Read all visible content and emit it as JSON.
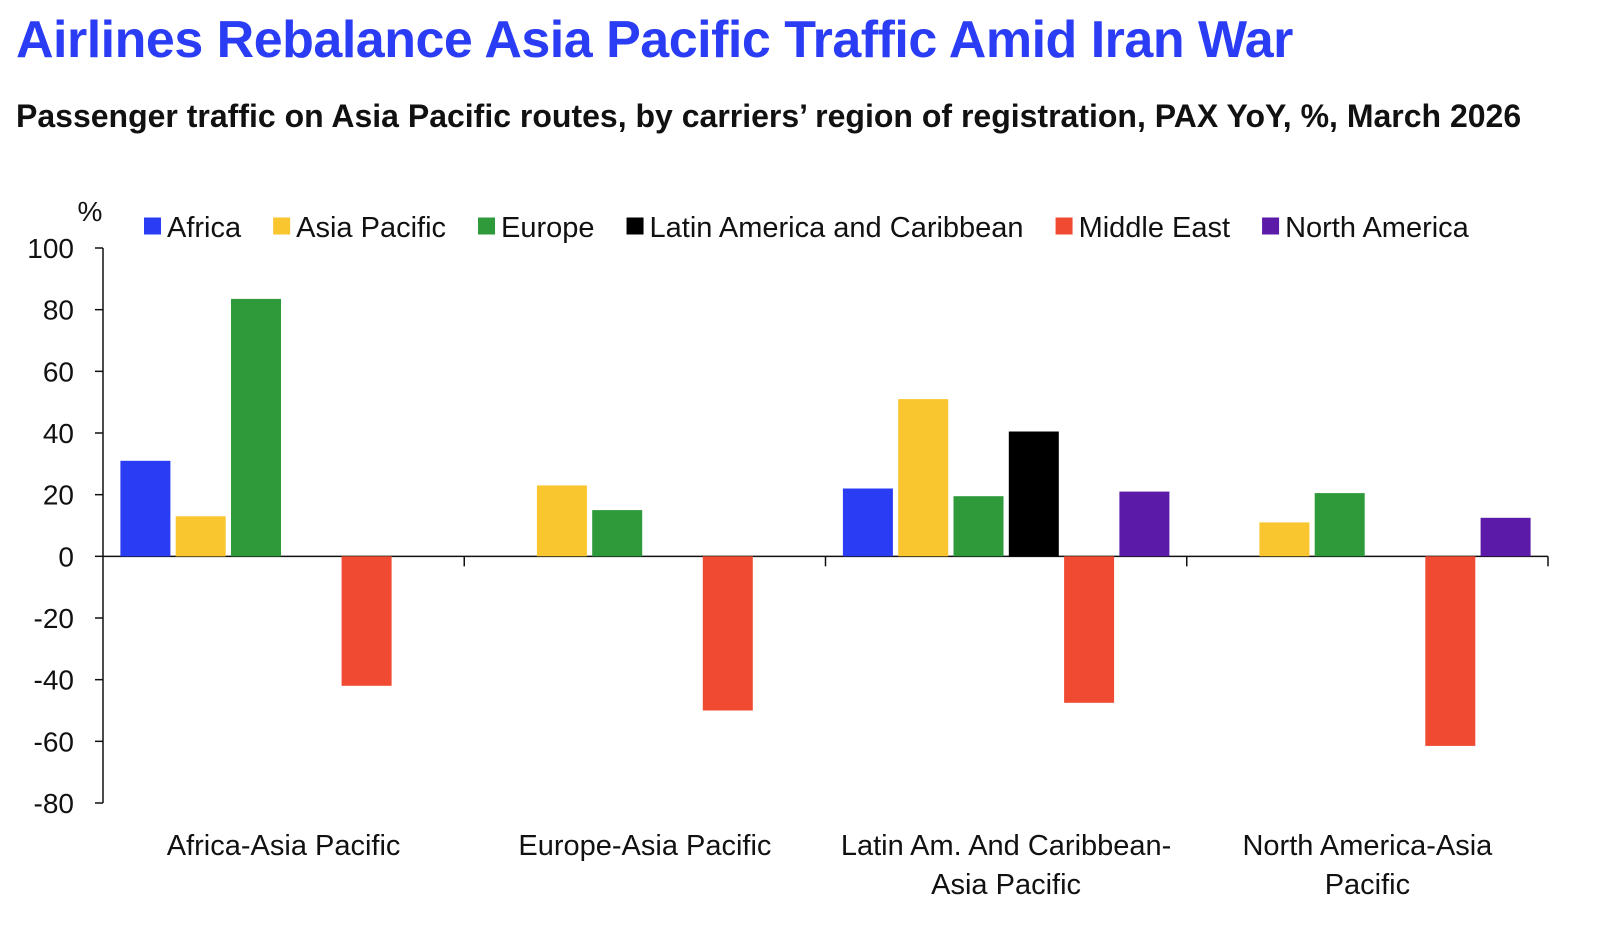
{
  "title": "Airlines Rebalance Asia Pacific Traffic Amid Iran War",
  "subtitle": "Passenger traffic on Asia Pacific routes, by carriers’ region of registration, PAX YoY, %, March 2026",
  "colors": {
    "title": "#2a3cf4",
    "Africa": "#2a3cf4",
    "Asia Pacific": "#f9c62f",
    "Europe": "#2e9a3a",
    "Latin America and Caribbean": "#000000",
    "Middle East": "#f04a32",
    "North America": "#5b1aa8"
  },
  "chart_data": {
    "type": "bar",
    "title": "Airlines Rebalance Asia Pacific Traffic Amid Iran War",
    "subtitle": "Passenger traffic on Asia Pacific routes, by carriers’ region of registration, PAX YoY, %, March 2026",
    "ylabel": "%",
    "xlabel": "",
    "ylim": [
      -80,
      100
    ],
    "yticks": [
      100,
      80,
      60,
      40,
      20,
      0,
      -20,
      -40,
      -60,
      -80
    ],
    "legend_position": "top",
    "grid": false,
    "categories": [
      [
        "Africa-Asia Pacific"
      ],
      [
        "Europe-Asia Pacific"
      ],
      [
        "Latin Am. And Caribbean-",
        "Asia Pacific"
      ],
      [
        "North America-Asia",
        "Pacific"
      ]
    ],
    "series": [
      {
        "name": "Africa",
        "values": [
          31,
          null,
          22,
          null
        ]
      },
      {
        "name": "Asia Pacific",
        "values": [
          13,
          23,
          51,
          11
        ]
      },
      {
        "name": "Europe",
        "values": [
          83.5,
          15,
          19.5,
          20.5
        ]
      },
      {
        "name": "Latin America and Caribbean",
        "values": [
          null,
          null,
          40.5,
          null
        ]
      },
      {
        "name": "Middle East",
        "values": [
          -42,
          -50,
          -47.5,
          -61.5
        ]
      },
      {
        "name": "North America",
        "values": [
          null,
          null,
          21,
          12.5
        ]
      }
    ]
  }
}
